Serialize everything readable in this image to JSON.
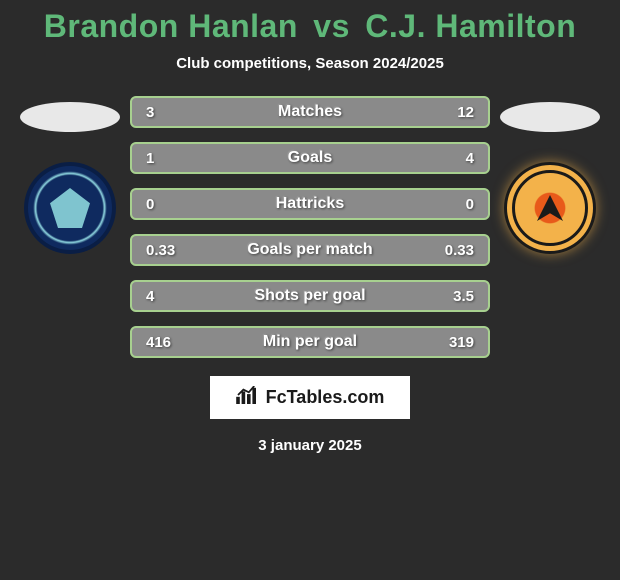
{
  "title": {
    "player1": "Brandon Hanlan",
    "vs": "vs",
    "player2": "C.J. Hamilton",
    "color": "#5fb879"
  },
  "subtitle": "Club competitions, Season 2024/2025",
  "bars": {
    "fill_color": "#8a8a8a",
    "border_color": "#a7d08f",
    "border_width": 2,
    "height": 32,
    "radius": 6,
    "label_color": "#ffffff",
    "value_color": "#ffffff",
    "label_fontsize": 16,
    "value_fontsize": 15,
    "items": [
      {
        "label": "Matches",
        "left": "3",
        "right": "12"
      },
      {
        "label": "Goals",
        "left": "1",
        "right": "4"
      },
      {
        "label": "Hattricks",
        "left": "0",
        "right": "0"
      },
      {
        "label": "Goals per match",
        "left": "0.33",
        "right": "0.33"
      },
      {
        "label": "Shots per goal",
        "left": "4",
        "right": "3.5"
      },
      {
        "label": "Min per goal",
        "left": "416",
        "right": "319"
      }
    ]
  },
  "crests": {
    "left": {
      "name": "wycombe-wanderers",
      "primary": "#0f2a5f",
      "accent": "#8fd6e0"
    },
    "right": {
      "name": "blackpool",
      "primary": "#f3b24a",
      "accent": "#e85a1a"
    }
  },
  "footer": {
    "site_label": "FcTables.com",
    "background": "#ffffff",
    "text_color": "#1a1a1a"
  },
  "date": "3 january 2025",
  "background_color": "#2b2b2b"
}
